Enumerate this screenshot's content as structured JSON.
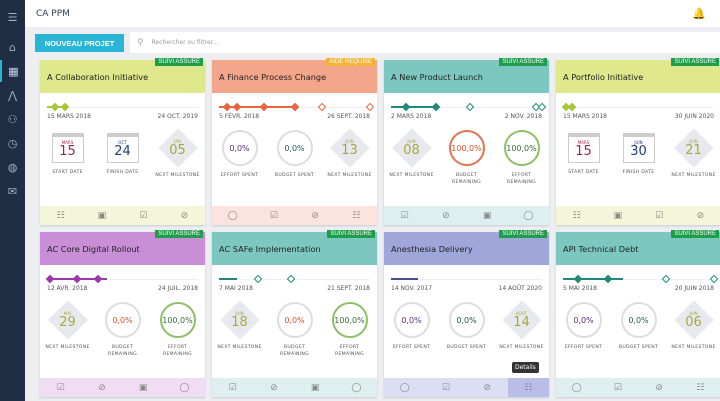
{
  "app": {
    "title": "CA PPM",
    "new_project": "NOUVEAU PROJET",
    "search_placeholder": "Rechercher ou filtrer..."
  },
  "sidebar": {
    "items": [
      "menu-icon",
      "home-icon",
      "dashboard-icon",
      "roadmap-icon",
      "team-icon",
      "clock-icon",
      "globe-icon",
      "inbox-icon"
    ],
    "active": 2
  },
  "tooltip": "Details",
  "projects": [
    {
      "title": "A Collaboration Initiative",
      "status": "SUIVI ASSURÉ",
      "status_color": "#1e9e4a",
      "header_color": "#dfe88a",
      "footer_color": "#f3f6d8",
      "timeline_color": "#a9c53a",
      "progress": 0.12,
      "start": "15 MARS 2018",
      "end": "24 OCT. 2019",
      "widgets": [
        {
          "type": "calendar",
          "month": "MARS",
          "day": "15",
          "color": "#a0234e",
          "label": "START DATE"
        },
        {
          "type": "calendar",
          "month": "OCT",
          "day": "24",
          "color": "#1e3d7a",
          "label": "FINISH DATE"
        },
        {
          "type": "milestone",
          "month": "JAN",
          "day": "05",
          "label": "NEXT MILESTONE"
        }
      ],
      "footer": [
        "list-icon",
        "money-icon",
        "check-icon",
        "link-icon"
      ]
    },
    {
      "title": "A Finance Process Change",
      "status": "AIDE REQUISE",
      "status_color": "#f5b335",
      "header_color": "#f4a68a",
      "footer_color": "#fbe3e0",
      "timeline_color": "#e8653d",
      "progress": 0.5,
      "start": "5 FÉVR. 2018",
      "end": "26 SEPT. 2018",
      "widgets": [
        {
          "type": "circle",
          "value": "0,0%",
          "color": "#5a2f7a",
          "ring": "#dddddd",
          "label": "EFFORT SPENT"
        },
        {
          "type": "circle",
          "value": "0,0%",
          "color": "#1e5a5a",
          "ring": "#dddddd",
          "label": "BUDGET SPENT"
        },
        {
          "type": "milestone",
          "month": "JUIN",
          "day": "13",
          "label": "NEXT MILESTONE"
        }
      ],
      "footer": [
        "comment-icon",
        "check-icon",
        "link-icon",
        "list-icon"
      ]
    },
    {
      "title": "A New Product Launch",
      "status": "SUIVI ASSURÉ",
      "status_color": "#1e9e4a",
      "header_color": "#7cc8c0",
      "footer_color": "#ddf0ef",
      "timeline_color": "#1e8a7a",
      "progress": 0.3,
      "start": "2 MARS 2018",
      "end": "2 NOV. 2018",
      "widgets": [
        {
          "type": "milestone",
          "month": "JUIN",
          "day": "08",
          "label": "NEXT MILESTONE"
        },
        {
          "type": "circle",
          "value": "100,0%",
          "color": "#d4502a",
          "ring": "#e6734f",
          "label": "BUDGET REMAINING"
        },
        {
          "type": "circle",
          "value": "100,0%",
          "color": "#3a6a2a",
          "ring": "#8cc063",
          "label": "EFFORT REMAINING"
        }
      ],
      "footer": [
        "check-icon",
        "link-icon",
        "money-icon",
        "comment-icon"
      ]
    },
    {
      "title": "A Portfolio Initiative",
      "status": "SUIVI ASSURÉ",
      "status_color": "#1e9e4a",
      "header_color": "#dfe88a",
      "footer_color": "#f3f6d8",
      "timeline_color": "#a9c53a",
      "progress": 0.06,
      "start": "15 MARS 2018",
      "end": "30 JUIN 2020",
      "widgets": [
        {
          "type": "calendar",
          "month": "MARS",
          "day": "15",
          "color": "#a0234e",
          "label": "START DATE"
        },
        {
          "type": "calendar",
          "month": "JUIN",
          "day": "30",
          "color": "#1e3d7a",
          "label": "FINISH DATE"
        },
        {
          "type": "milestone",
          "month": "JUIN",
          "day": "21",
          "label": "NEXT MILESTONE"
        }
      ],
      "footer": [
        "list-icon",
        "money-icon",
        "check-icon",
        "link-icon"
      ]
    },
    {
      "title": "AC Core Digital Rollout",
      "status": "SUIVI ASSURÉ",
      "status_color": "#1e9e4a",
      "header_color": "#c98fd6",
      "footer_color": "#f1ddf3",
      "timeline_color": "#9a3aa8",
      "progress": 0.4,
      "start": "12 AVR. 2018",
      "end": "24 JUIL. 2018",
      "widgets": [
        {
          "type": "milestone",
          "month": "MAI",
          "day": "29",
          "label": "NEXT MILESTONE"
        },
        {
          "type": "circle",
          "value": "0,0%",
          "color": "#d4502a",
          "ring": "#dddddd",
          "label": "BUDGET REMAINING"
        },
        {
          "type": "circle",
          "value": "100,0%",
          "color": "#3a6a2a",
          "ring": "#8cc063",
          "label": "EFFORT REMAINING"
        }
      ],
      "footer": [
        "check-icon",
        "link-icon",
        "money-icon",
        "comment-icon"
      ]
    },
    {
      "title": "AC SAFe Implementation",
      "status": "SUIVI ASSURÉ",
      "status_color": "#1e9e4a",
      "header_color": "#7cc8c0",
      "footer_color": "#ddf0ef",
      "timeline_color": "#1e8a7a",
      "progress": 0.12,
      "start": "7 MAI 2018",
      "end": "21 SEPT. 2018",
      "widgets": [
        {
          "type": "milestone",
          "month": "JUIN",
          "day": "18",
          "label": "NEXT MILESTONE"
        },
        {
          "type": "circle",
          "value": "0,0%",
          "color": "#d4502a",
          "ring": "#dddddd",
          "label": "BUDGET REMAINING"
        },
        {
          "type": "circle",
          "value": "100,0%",
          "color": "#3a6a2a",
          "ring": "#8cc063",
          "label": "EFFORT REMAINING"
        }
      ],
      "footer": [
        "check-icon",
        "link-icon",
        "money-icon",
        "comment-icon"
      ]
    },
    {
      "title": "Anesthesia Delivery",
      "status": "SUIVI ASSURÉ",
      "status_color": "#1e9e4a",
      "header_color": "#9fa6da",
      "footer_color": "#dcdff3",
      "timeline_color": "#4a4f8a",
      "progress": 0.18,
      "start": "14 NOV. 2017",
      "end": "14 AOÛT 2020",
      "widgets": [
        {
          "type": "circle",
          "value": "0,0%",
          "color": "#5a2f7a",
          "ring": "#dddddd",
          "label": "EFFORT SPENT"
        },
        {
          "type": "circle",
          "value": "0,0%",
          "color": "#1e5a5a",
          "ring": "#dddddd",
          "label": "BUDGET SPENT"
        },
        {
          "type": "milestone",
          "month": "AOÛT",
          "day": "14",
          "label": "NEXT MILESTONE"
        }
      ],
      "footer": [
        "comment-icon",
        "check-icon",
        "link-icon",
        "list-icon"
      ]
    },
    {
      "title": "API Technical Debt",
      "status": "SUIVI ASSURÉ",
      "status_color": "#1e9e4a",
      "header_color": "#7cc8c0",
      "footer_color": "#ddf0ef",
      "timeline_color": "#1e8a7a",
      "progress": 0.4,
      "start": "5 MAI 2018",
      "end": "20 JUIN 2018",
      "widgets": [
        {
          "type": "circle",
          "value": "0,0%",
          "color": "#5a2f7a",
          "ring": "#dddddd",
          "label": "EFFORT SPENT"
        },
        {
          "type": "circle",
          "value": "0,0%",
          "color": "#1e5a5a",
          "ring": "#dddddd",
          "label": "BUDGET SPENT"
        },
        {
          "type": "milestone",
          "month": "JUIN",
          "day": "06",
          "label": "NEXT MILESTONE"
        }
      ],
      "footer": [
        "comment-icon",
        "check-icon",
        "link-icon",
        "list-icon"
      ]
    }
  ]
}
